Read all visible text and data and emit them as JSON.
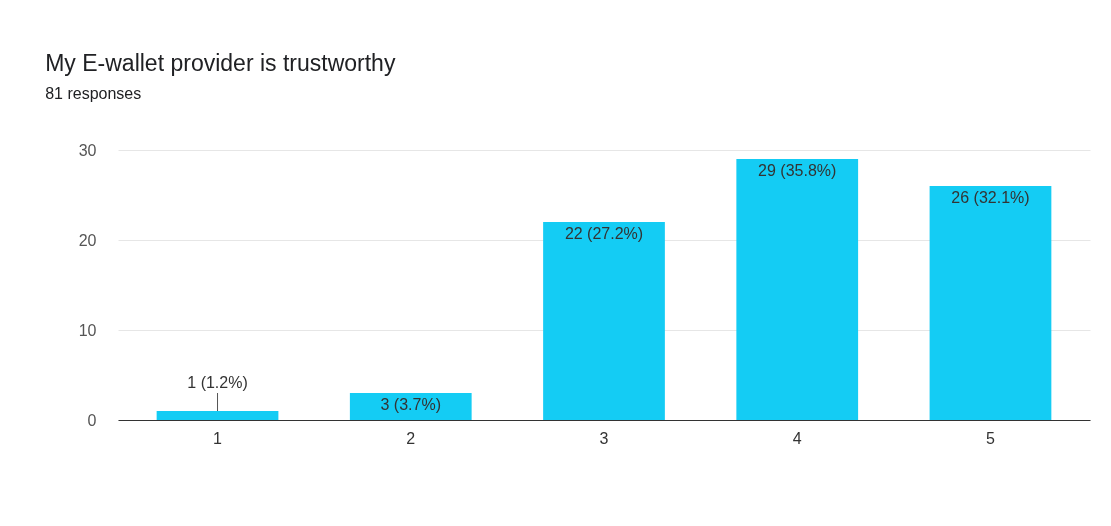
{
  "chart_data": {
    "type": "bar",
    "title": "My E-wallet provider is trustworthy",
    "subtitle": "81 responses",
    "categories": [
      "1",
      "2",
      "3",
      "4",
      "5"
    ],
    "values": [
      1,
      3,
      22,
      29,
      26
    ],
    "value_labels": [
      "1 (1.2%)",
      "3 (3.7%)",
      "22 (27.2%)",
      "29 (35.8%)",
      "26 (32.1%)"
    ],
    "color": "#14ccf4",
    "ylim": [
      0,
      30
    ],
    "yticks": [
      0,
      10,
      20,
      30
    ],
    "grid": "y"
  }
}
